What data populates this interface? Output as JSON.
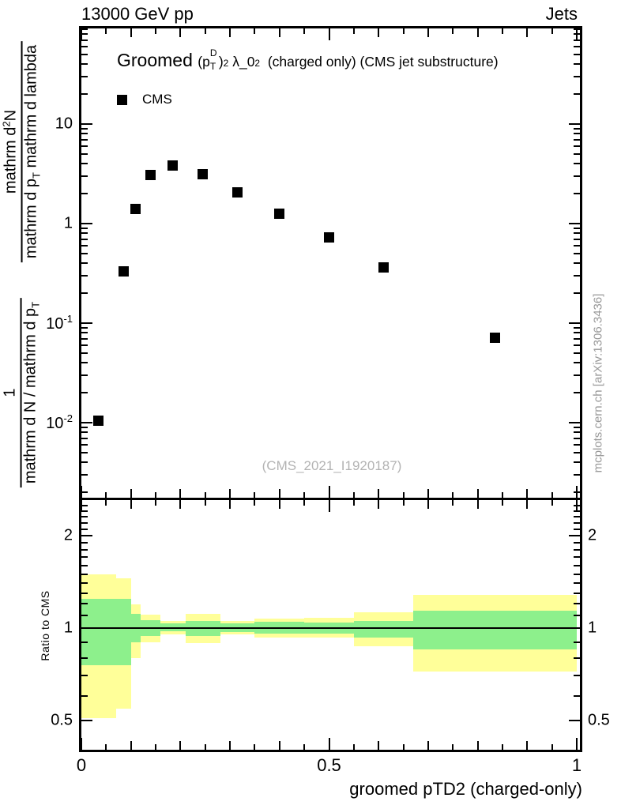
{
  "header": {
    "left": "13000 GeV pp",
    "right": "Jets"
  },
  "main_panel": {
    "title_segments": [
      {
        "style": "big",
        "text": "Groomed "
      },
      {
        "style": "base",
        "text": "("
      },
      {
        "style": "base",
        "text": "p"
      },
      {
        "style": "stack",
        "top": "D",
        "bottom": "T"
      },
      {
        "style": "base",
        "text": ")"
      },
      {
        "style": "sup",
        "text": "2"
      },
      {
        "style": "base",
        "text": " λ_0"
      },
      {
        "style": "sup",
        "text": "2"
      },
      {
        "style": "base",
        "text": "  (charged only) (CMS jet substructure)"
      }
    ],
    "legend": {
      "label": "CMS",
      "marker": "filled-square",
      "marker_color": "#000000"
    },
    "watermark": "(CMS_2021_I1920187)",
    "ylabel_fractions": [
      {
        "num": [
          {
            "style": "base",
            "text": "mathrm d"
          },
          {
            "style": "sup",
            "text": "2"
          },
          {
            "style": "base",
            "text": "N"
          }
        ],
        "den": [
          {
            "style": "base",
            "text": "mathrm d p"
          },
          {
            "style": "sub",
            "text": "T"
          },
          {
            "style": "base",
            "text": " mathrm d lambda"
          }
        ]
      },
      {
        "num": [
          {
            "style": "base",
            "text": "1"
          }
        ],
        "den": [
          {
            "style": "base",
            "text": "mathrm d N / mathrm d p"
          },
          {
            "style": "sub",
            "text": "T"
          }
        ]
      }
    ],
    "y_ticks": [
      {
        "base": "10",
        "exp": "",
        "value": 10
      },
      {
        "base": "1",
        "exp": "",
        "value": 1
      },
      {
        "base": "10",
        "exp": "-1",
        "value": 0.1
      },
      {
        "base": "10",
        "exp": "-2",
        "value": 0.01
      }
    ]
  },
  "ratio_panel": {
    "ylabel": "Ratio to CMS",
    "y_ticks": [
      {
        "label": "2",
        "value": 2
      },
      {
        "label": "1",
        "value": 1
      },
      {
        "label": "0.5",
        "value": 0.5
      }
    ]
  },
  "x_axis": {
    "title": "groomed pTD2 (charged-only)",
    "ticks": [
      {
        "label": "0",
        "value": 0
      },
      {
        "label": "0.5",
        "value": 0.5
      },
      {
        "label": "1",
        "value": 1
      }
    ]
  },
  "side_note": "mcplots.cern.ch [arXiv:1306.3436]",
  "colors": {
    "marker": "#000000",
    "band_outer": "#ffff99",
    "band_inner": "#8df08c",
    "watermark": "#b3b3b3",
    "side_note": "#999999"
  },
  "chart_data": {
    "type": "scatter",
    "title": "Groomed (p_T^D)^2 lambda_0^2 (charged only) (CMS jet substructure)",
    "xlabel": "groomed pTD2 (charged-only)",
    "ylabel": "1/(dN/dp_T) d^2N/(dp_T dlambda)",
    "x_range": [
      0,
      1
    ],
    "y_scale": "log",
    "y_range_main": [
      0.0017,
      96
    ],
    "grid": false,
    "legend_position": "top-left-inside",
    "series": [
      {
        "name": "CMS",
        "marker": "filled-square",
        "color": "#000000",
        "points": [
          [
            0.035,
            0.0104
          ],
          [
            0.085,
            0.33
          ],
          [
            0.11,
            1.39
          ],
          [
            0.14,
            3.05
          ],
          [
            0.185,
            3.8
          ],
          [
            0.245,
            3.16
          ],
          [
            0.315,
            2.07
          ],
          [
            0.4,
            1.25
          ],
          [
            0.5,
            0.72
          ],
          [
            0.61,
            0.36
          ],
          [
            0.835,
            0.071
          ]
        ]
      }
    ],
    "ratio": {
      "ylabel": "Ratio to CMS",
      "y_scale": "log",
      "y_range": [
        0.395,
        2.61
      ],
      "reference_line": 1,
      "bins": [
        {
          "x_lo": 0.0,
          "x_hi": 0.07,
          "outer_lo": 0.51,
          "outer_hi": 1.5,
          "inner_lo": 0.758,
          "inner_hi": 1.243
        },
        {
          "x_lo": 0.07,
          "x_hi": 0.1,
          "outer_lo": 0.546,
          "outer_hi": 1.45,
          "inner_lo": 0.758,
          "inner_hi": 1.243
        },
        {
          "x_lo": 0.1,
          "x_hi": 0.12,
          "outer_lo": 0.8,
          "outer_hi": 1.195,
          "inner_lo": 0.898,
          "inner_hi": 1.115
        },
        {
          "x_lo": 0.12,
          "x_hi": 0.16,
          "outer_lo": 0.898,
          "outer_hi": 1.105,
          "inner_lo": 0.94,
          "inner_hi": 1.062
        },
        {
          "x_lo": 0.16,
          "x_hi": 0.21,
          "outer_lo": 0.955,
          "outer_hi": 1.052,
          "inner_lo": 0.975,
          "inner_hi": 1.036
        },
        {
          "x_lo": 0.21,
          "x_hi": 0.28,
          "outer_lo": 0.894,
          "outer_hi": 1.11,
          "inner_lo": 0.944,
          "inner_hi": 1.057
        },
        {
          "x_lo": 0.28,
          "x_hi": 0.35,
          "outer_lo": 0.952,
          "outer_hi": 1.057,
          "inner_lo": 0.971,
          "inner_hi": 1.036
        },
        {
          "x_lo": 0.35,
          "x_hi": 0.45,
          "outer_lo": 0.933,
          "outer_hi": 1.075,
          "inner_lo": 0.961,
          "inner_hi": 1.046
        },
        {
          "x_lo": 0.45,
          "x_hi": 0.55,
          "outer_lo": 0.93,
          "outer_hi": 1.08,
          "inner_lo": 0.957,
          "inner_hi": 1.042
        },
        {
          "x_lo": 0.55,
          "x_hi": 0.67,
          "outer_lo": 0.874,
          "outer_hi": 1.126,
          "inner_lo": 0.93,
          "inner_hi": 1.057
        },
        {
          "x_lo": 0.67,
          "x_hi": 1.0,
          "outer_lo": 0.722,
          "outer_hi": 1.285,
          "inner_lo": 0.854,
          "inner_hi": 1.137
        }
      ]
    }
  }
}
